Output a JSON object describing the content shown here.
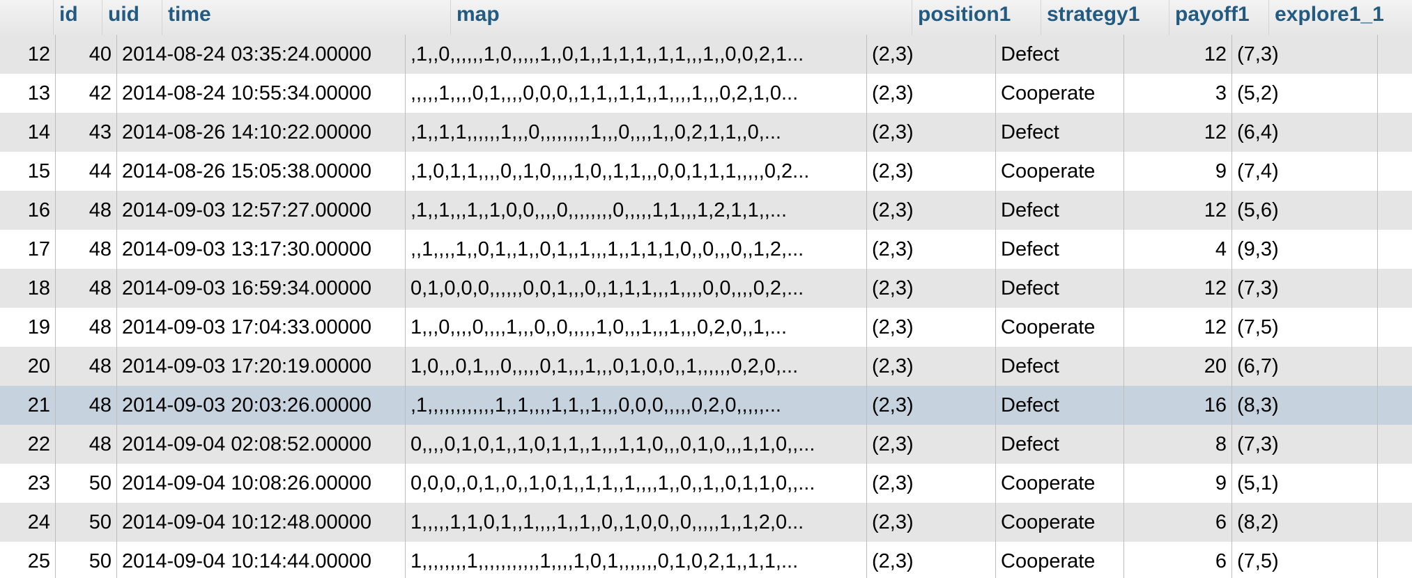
{
  "headers": {
    "id": "id",
    "uid": "uid",
    "time": "time",
    "map": "map",
    "position1": "position1",
    "strategy1": "strategy1",
    "payoff1": "payoff1",
    "explore1_1": "explore1_1"
  },
  "rows": [
    {
      "id": "12",
      "uid": "40",
      "time": "2014-08-24 03:35:24.00000",
      "map": ",1,,0,,,,,,1,0,,,,,1,,0,1,,1,1,1,,1,1,,,1,,0,0,2,1...",
      "position1": "(2,3)",
      "strategy1": "Defect",
      "payoff1": "12",
      "explore1_1": "(7,3)"
    },
    {
      "id": "13",
      "uid": "42",
      "time": "2014-08-24 10:55:34.00000",
      "map": ",,,,,1,,,,0,1,,,,0,0,0,,1,1,,1,1,,1,,,,1,,,0,2,1,0...",
      "position1": "(2,3)",
      "strategy1": "Cooperate",
      "payoff1": "3",
      "explore1_1": "(5,2)"
    },
    {
      "id": "14",
      "uid": "43",
      "time": "2014-08-26 14:10:22.00000",
      "map": ",1,,1,1,,,,,,1,,,0,,,,,,,,,1,,,0,,,,1,,0,2,1,1,,0,...",
      "position1": "(2,3)",
      "strategy1": "Defect",
      "payoff1": "12",
      "explore1_1": "(6,4)"
    },
    {
      "id": "15",
      "uid": "44",
      "time": "2014-08-26 15:05:38.00000",
      "map": ",1,0,1,1,,,,0,,1,0,,,,1,0,,1,1,,,0,0,1,1,1,,,,,0,2...",
      "position1": "(2,3)",
      "strategy1": "Cooperate",
      "payoff1": "9",
      "explore1_1": "(7,4)"
    },
    {
      "id": "16",
      "uid": "48",
      "time": "2014-09-03 12:57:27.00000",
      "map": ",1,,1,,,1,,1,0,0,,,,0,,,,,,,,0,,,,,1,1,,,1,2,1,1,,...",
      "position1": "(2,3)",
      "strategy1": "Defect",
      "payoff1": "12",
      "explore1_1": "(5,6)"
    },
    {
      "id": "17",
      "uid": "48",
      "time": "2014-09-03 13:17:30.00000",
      "map": ",,1,,,,1,,0,1,,1,,0,1,,1,,,1,,1,1,1,0,,0,,,0,,1,2,...",
      "position1": "(2,3)",
      "strategy1": "Defect",
      "payoff1": "4",
      "explore1_1": "(9,3)"
    },
    {
      "id": "18",
      "uid": "48",
      "time": "2014-09-03 16:59:34.00000",
      "map": "0,1,0,0,0,,,,,,0,0,1,,,0,,1,1,1,,,1,,,,0,0,,,,0,2,...",
      "position1": "(2,3)",
      "strategy1": "Defect",
      "payoff1": "12",
      "explore1_1": "(7,3)"
    },
    {
      "id": "19",
      "uid": "48",
      "time": "2014-09-03 17:04:33.00000",
      "map": "1,,,0,,,,0,,,,1,,,0,,0,,,,,1,0,,,1,,,1,,,0,2,0,,1,...",
      "position1": "(2,3)",
      "strategy1": "Cooperate",
      "payoff1": "12",
      "explore1_1": "(7,5)"
    },
    {
      "id": "20",
      "uid": "48",
      "time": "2014-09-03 17:20:19.00000",
      "map": "1,0,,,0,1,,,0,,,,,0,1,,,1,,,0,1,0,0,,1,,,,,,0,2,0,...",
      "position1": "(2,3)",
      "strategy1": "Defect",
      "payoff1": "20",
      "explore1_1": "(6,7)"
    },
    {
      "id": "21",
      "uid": "48",
      "time": "2014-09-03 20:03:26.00000",
      "map": ",1,,,,,,,,,,,,1,,1,,,,1,1,,1,,,0,0,0,,,,,0,2,0,,,,,...",
      "position1": "(2,3)",
      "strategy1": "Defect",
      "payoff1": "16",
      "explore1_1": "(8,3)"
    },
    {
      "id": "22",
      "uid": "48",
      "time": "2014-09-04 02:08:52.00000",
      "map": "0,,,,0,1,0,1,,1,0,1,1,,1,,,1,1,0,,,0,1,0,,,1,1,0,,...",
      "position1": "(2,3)",
      "strategy1": "Defect",
      "payoff1": "8",
      "explore1_1": "(7,3)"
    },
    {
      "id": "23",
      "uid": "50",
      "time": "2014-09-04 10:08:26.00000",
      "map": "0,0,0,,0,1,,0,,1,0,1,,1,1,,1,,,,1,,0,,1,,0,1,1,0,,...",
      "position1": "(2,3)",
      "strategy1": "Cooperate",
      "payoff1": "9",
      "explore1_1": "(5,1)"
    },
    {
      "id": "24",
      "uid": "50",
      "time": "2014-09-04 10:12:48.00000",
      "map": "1,,,,,1,1,0,1,,1,,,,1,,1,,0,,1,0,0,,0,,,,,1,,1,2,0...",
      "position1": "(2,3)",
      "strategy1": "Cooperate",
      "payoff1": "6",
      "explore1_1": "(8,2)"
    },
    {
      "id": "25",
      "uid": "50",
      "time": "2014-09-04 10:14:44.00000",
      "map": "1,,,,,,,,1,,,,,,,,,,,1,,,,1,0,1,,,,,,,0,1,0,2,1,,1,1,...",
      "position1": "(2,3)",
      "strategy1": "Cooperate",
      "payoff1": "6",
      "explore1_1": "(7,5)"
    }
  ]
}
